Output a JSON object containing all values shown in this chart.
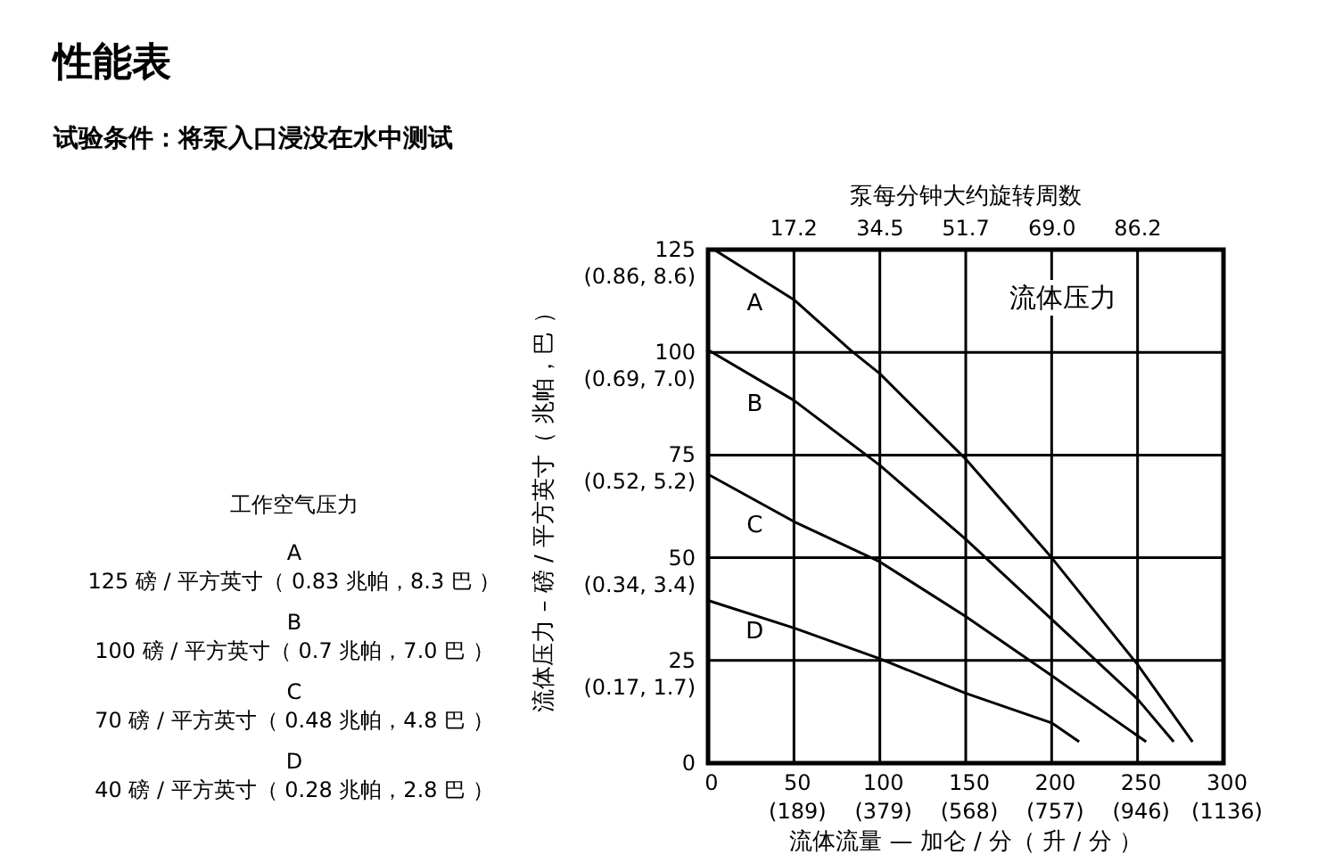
{
  "chart_data": {
    "type": "line",
    "title": "性能表",
    "subtitle": "试验条件：将泵入口浸没在水中测试",
    "xlabel": "流体流量 — 加仑 / 分（ 升 / 分 ）",
    "ylabel": "流体压力 – 磅 / 平方英寸（ 兆帕，巴 ）",
    "x2label": "泵每分钟大约旋转周数",
    "xlim": [
      0,
      300
    ],
    "ylim": [
      0,
      125
    ],
    "xticks": [
      0,
      50,
      100,
      150,
      200,
      250,
      300
    ],
    "x2lim": [
      0,
      103.4
    ],
    "x2ticks": [
      17.2,
      34.5,
      51.7,
      {
        "value": 69,
        "label": "69.0"
      },
      86.2
    ],
    "yticks": [
      0,
      25,
      50,
      75,
      100,
      125
    ],
    "grid": true,
    "marker": "none",
    "line_style": "solid",
    "series": [
      {
        "name": "A",
        "color": "#000000",
        "x": [
          3.5,
          50,
          83,
          100,
          150,
          200,
          250,
          282
        ],
        "values": [
          125,
          112.8,
          100.5,
          94.8,
          74,
          50,
          24,
          5.2
        ]
      },
      {
        "name": "B",
        "color": "#000000",
        "x": [
          0,
          50,
          100,
          150,
          200,
          250,
          271
        ],
        "values": [
          100.6,
          88.3,
          72.5,
          54.5,
          35,
          15.6,
          5.2
        ]
      },
      {
        "name": "C",
        "color": "#000000",
        "x": [
          0,
          50,
          100,
          150,
          200,
          255
        ],
        "values": [
          70.3,
          58.8,
          49,
          35.7,
          21.3,
          5.2
        ]
      },
      {
        "name": "D",
        "color": "#000000",
        "x": [
          0,
          50,
          100,
          150,
          200,
          216
        ],
        "values": [
          39.6,
          32.9,
          25.4,
          17,
          9.8,
          5.2
        ]
      }
    ],
    "annotations": [
      "流体压力",
      "工作空气压力",
      "A",
      "125 磅 / 平方英寸（ 0.83 兆帕，8.3 巴 ）",
      "B",
      "100 磅 / 平方英寸（ 0.7 兆帕，7.0 巴 ）",
      "C",
      "70 磅 / 平方英寸（ 0.48 兆帕，4.8 巴 ）",
      "D",
      "40 磅 / 平方英寸（ 0.28 兆帕，2.8 巴 ）",
      "(189)",
      "(379)",
      "(568)",
      "(757)",
      "(946)",
      "(1136)",
      "(0.17, 1.7)",
      "(0.34, 3.4)",
      "(0.52, 5.2)",
      "(0.69, 7.0)",
      "(0.86, 8.6)"
    ]
  }
}
